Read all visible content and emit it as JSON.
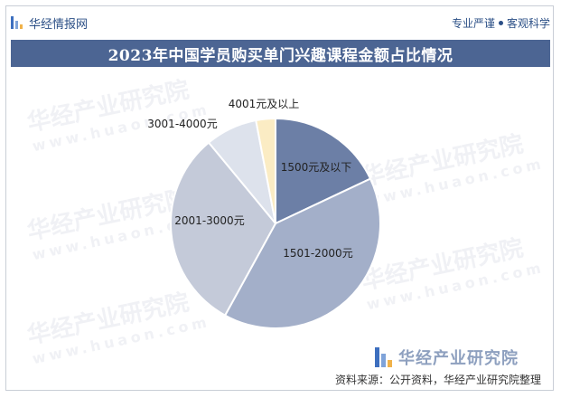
{
  "header": {
    "brand": "华经情报网",
    "slogan_left": "专业严谨",
    "slogan_right": "客观科学"
  },
  "title": "2023年中国学员购买单门兴趣课程金额占比情况",
  "watermark": {
    "text": "华经产业研究院",
    "domain": "www.huaon.com"
  },
  "corner_brand": "华经产业研究院",
  "source": "资料来源：公开资料，华经产业研究院整理",
  "colors": {
    "title_bg": "#4c6593",
    "brand": "#2b4f86"
  },
  "chart_data": {
    "type": "pie",
    "categories": [
      "1500元及以下",
      "1501-2000元",
      "2001-3000元",
      "3001-4000元",
      "4001元及以上"
    ],
    "values": [
      18,
      40,
      31,
      8,
      3
    ],
    "colors": [
      "#6c7fa6",
      "#a3afc9",
      "#c4cad9",
      "#dde2ec",
      "#fbecc4"
    ]
  }
}
